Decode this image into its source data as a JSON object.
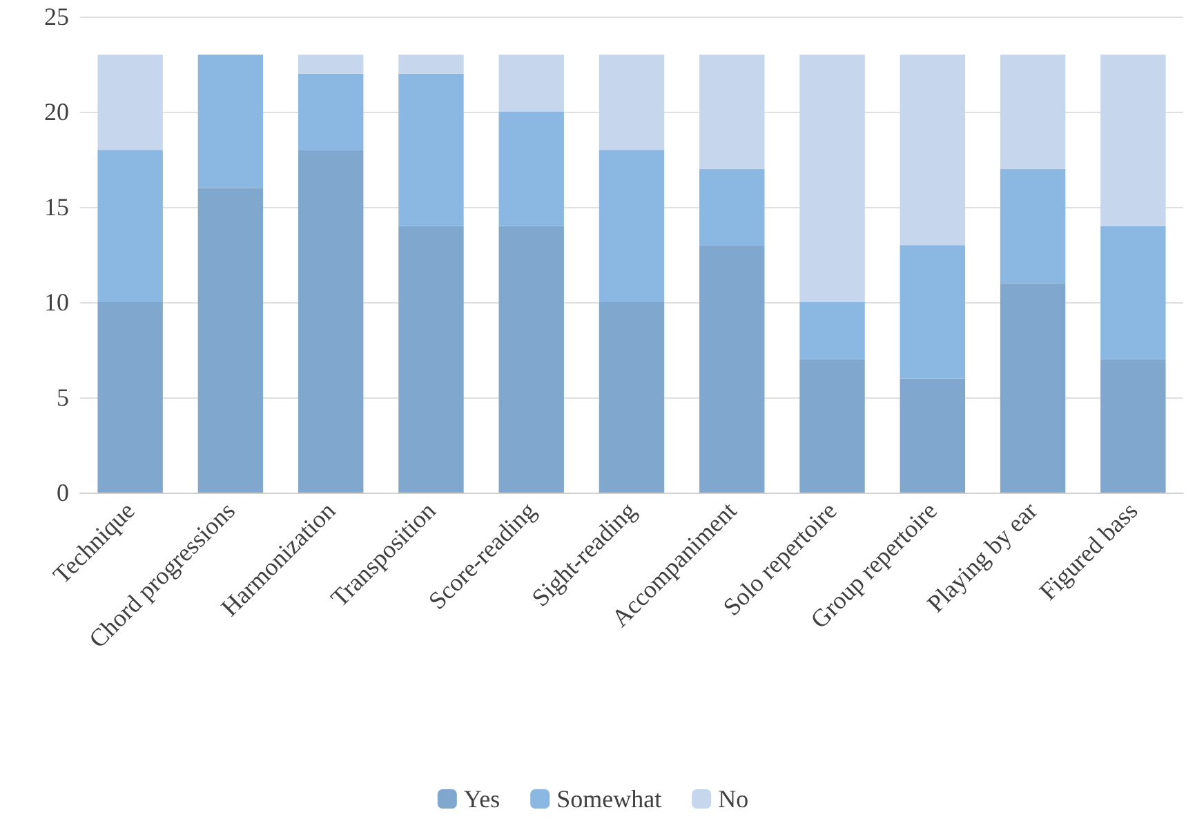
{
  "chart_data": {
    "type": "bar",
    "stacked": true,
    "categories": [
      "Technique",
      "Chord progressions",
      "Harmonization",
      "Transposition",
      "Score-reading",
      "Sight-reading",
      "Accompaniment",
      "Solo repertoire",
      "Group repertoire",
      "Playing by ear",
      "Figured bass"
    ],
    "series": [
      {
        "name": "Yes",
        "color": "#80a7cd",
        "values": [
          10,
          16,
          18,
          14,
          14,
          10,
          13,
          7,
          6,
          11,
          7
        ]
      },
      {
        "name": "Somewhat",
        "color": "#8ab8e2",
        "values": [
          8,
          7,
          4,
          8,
          6,
          8,
          4,
          3,
          7,
          6,
          7
        ]
      },
      {
        "name": "No",
        "color": "#c6d7ed",
        "values": [
          5,
          0,
          1,
          1,
          3,
          5,
          6,
          13,
          10,
          6,
          9
        ]
      }
    ],
    "ylim": [
      0,
      25
    ],
    "yticks": [
      0,
      5,
      10,
      15,
      20,
      25
    ],
    "grid": "y",
    "legend": "bottom"
  }
}
